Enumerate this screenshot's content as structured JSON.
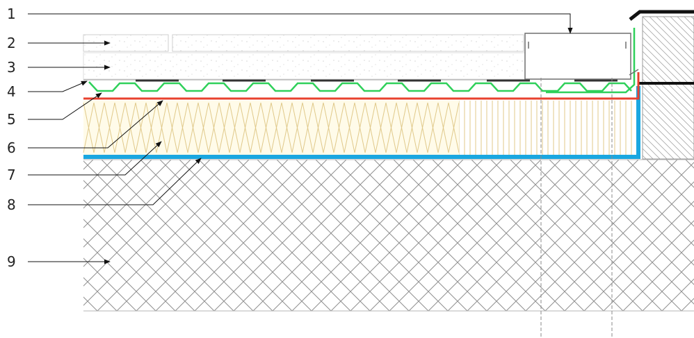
{
  "labels": [
    "1",
    "2",
    "3",
    "4",
    "5",
    "6",
    "7",
    "8",
    "9"
  ],
  "colors": {
    "leader": "#111111",
    "membrane_red": "#e8412e",
    "drainage_green": "#2fd05a",
    "vapour_blue": "#1aa7e0",
    "insulation_tan": "#e0c98a",
    "concrete_hatch": "#8f8f8f",
    "wall_hatch": "#a8a8a8",
    "axis_dash": "#8a8a8a",
    "slab_edge": "#b5b5b5",
    "gravel_dots": "#d2d2d2"
  }
}
